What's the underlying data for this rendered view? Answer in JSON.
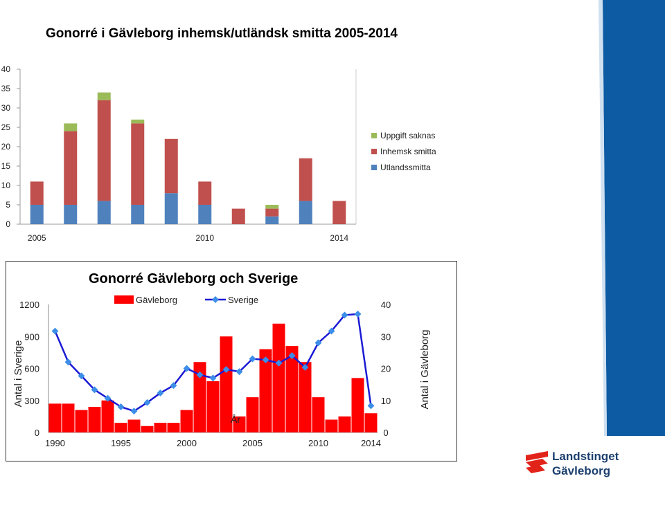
{
  "chart_data": [
    {
      "type": "bar",
      "stacked": true,
      "title": "Gonorré i Gävleborg inhemsk/utländsk smitta 2005-2014",
      "x": [
        2005,
        2006,
        2007,
        2008,
        2009,
        2010,
        2011,
        2012,
        2013,
        2014
      ],
      "x_tick_labels": [
        "2005",
        "2010",
        "2014"
      ],
      "ylim": [
        0,
        40
      ],
      "y_ticks": [
        0,
        5,
        10,
        15,
        20,
        25,
        30,
        35,
        40
      ],
      "grid": false,
      "legend_position": "right",
      "series": [
        {
          "name": "Utlandssmitta",
          "color": "#4f81bd",
          "values": [
            5,
            5,
            6,
            5,
            8,
            5,
            0,
            2,
            6,
            0
          ]
        },
        {
          "name": "Inhemsk smitta",
          "color": "#c0504d",
          "values": [
            6,
            19,
            26,
            21,
            14,
            6,
            4,
            2,
            11,
            6
          ]
        },
        {
          "name": "Uppgift saknas",
          "color": "#9bbb59",
          "values": [
            0,
            2,
            2,
            1,
            0,
            0,
            0,
            1,
            0,
            0
          ]
        }
      ]
    },
    {
      "type": "bar+line",
      "title": "Gonorré Gävleborg och Sverige",
      "xlabel": "År",
      "x": [
        1990,
        1991,
        1992,
        1993,
        1994,
        1995,
        1996,
        1997,
        1998,
        1999,
        2000,
        2001,
        2002,
        2003,
        2004,
        2005,
        2006,
        2007,
        2008,
        2009,
        2010,
        2011,
        2012,
        2013,
        2014
      ],
      "x_tick_labels": [
        "1990",
        "1995",
        "2000",
        "2005",
        "2010",
        "2014"
      ],
      "ylabel_left": "Antal i Sverige",
      "ylim_left": [
        0,
        1200
      ],
      "y_ticks_left": [
        0,
        300,
        600,
        900,
        1200
      ],
      "ylabel_right": "Antal i Gävleborg",
      "ylim_right": [
        0,
        40
      ],
      "y_ticks_right": [
        0,
        10,
        20,
        30,
        40
      ],
      "legend_position": "top",
      "series": [
        {
          "name": "Gävleborg",
          "type": "bar",
          "axis": "right",
          "color": "#ff0000",
          "values": [
            9,
            9,
            7,
            8,
            10,
            3,
            4,
            2,
            3,
            3,
            7,
            22,
            16,
            30,
            5,
            11,
            26,
            34,
            27,
            22,
            11,
            4,
            5,
            17,
            6
          ]
        },
        {
          "name": "Sverige",
          "type": "line",
          "axis": "left",
          "color": "#1a1ad4",
          "marker_color": "#3c8ee8",
          "values": [
            950,
            660,
            530,
            400,
            320,
            240,
            200,
            280,
            370,
            440,
            600,
            540,
            510,
            590,
            570,
            690,
            680,
            650,
            720,
            610,
            840,
            950,
            1100,
            1110,
            250
          ]
        }
      ]
    }
  ],
  "logo": {
    "line1": "Landstinget",
    "line2": "Gävleborg",
    "colors": {
      "mark": "#e2231a",
      "text": "#1b3f6e",
      "band": "#0d5ba3"
    }
  }
}
